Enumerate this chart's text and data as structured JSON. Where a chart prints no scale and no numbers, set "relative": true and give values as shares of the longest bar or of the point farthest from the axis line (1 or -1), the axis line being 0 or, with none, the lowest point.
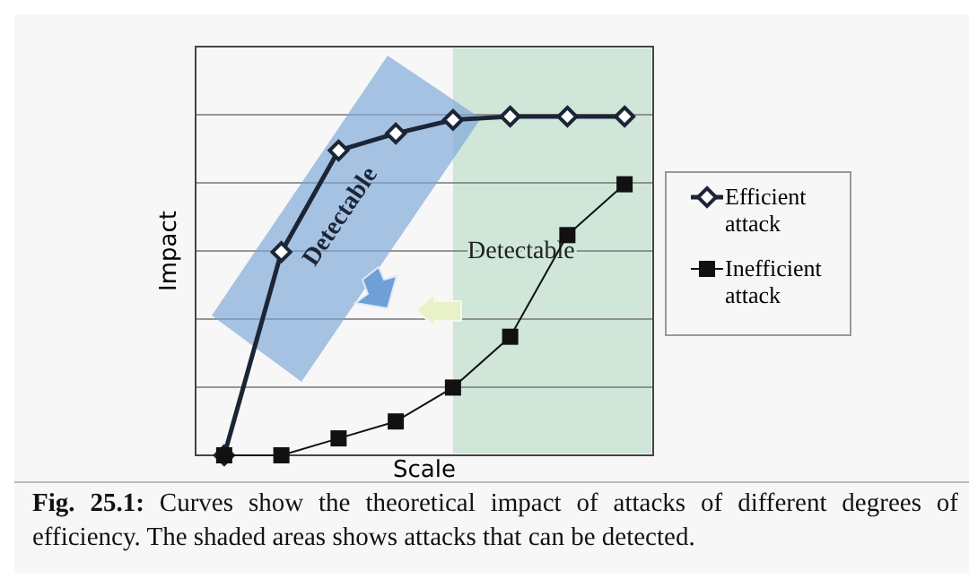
{
  "chart_data": {
    "type": "line",
    "xlabel": "Scale",
    "ylabel": "Impact",
    "relative": true,
    "grid": "y",
    "legend": "right",
    "categories": [
      null,
      null,
      null,
      null,
      null,
      null,
      null,
      null
    ],
    "series": [
      {
        "name": "Efficient attack",
        "color": "#1c2536",
        "marker": "diamond",
        "values": [
          0,
          0.6,
          0.9,
          0.95,
          0.99,
          1,
          1,
          1
        ]
      },
      {
        "name": "Inefficient attack",
        "color": "#111111",
        "marker": "square",
        "values": [
          0,
          0,
          0.05,
          0.1,
          0.2,
          0.35,
          0.65,
          0.8
        ]
      }
    ],
    "annotations": [
      "Detectable",
      "Detectable",
      "Fig. 25.1:",
      "Curves show the theoretical impact of attacks of different degrees of efficiency. The shaded areas shows attacks that can be detected."
    ]
  }
}
